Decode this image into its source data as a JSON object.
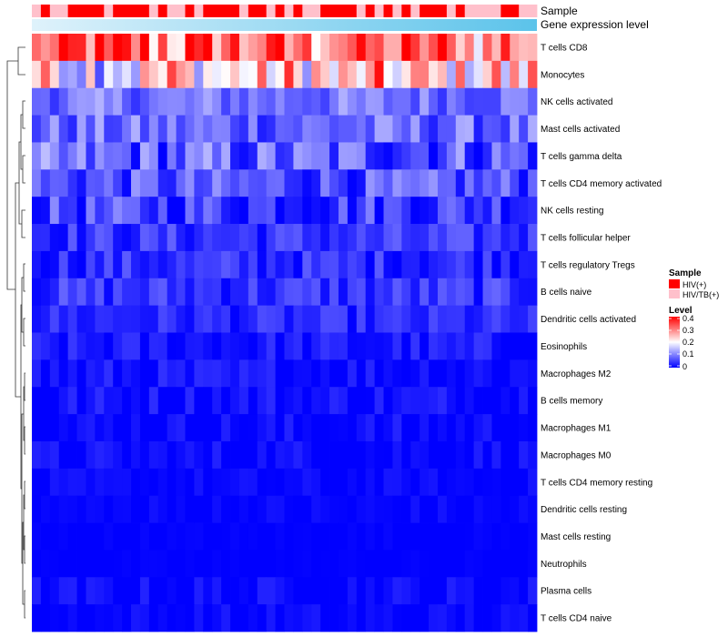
{
  "chart_data": {
    "type": "heatmap",
    "title": "",
    "annotation_rows": [
      {
        "name": "Sample",
        "label": "Sample"
      },
      {
        "name": "Gene expression level",
        "label": "Gene expression level"
      }
    ],
    "sample_groups": [
      "HIV/TB(+)",
      "HIV(+)",
      "HIV/TB(+)",
      "HIV/TB(+)",
      "HIV(+)",
      "HIV(+)",
      "HIV(+)",
      "HIV(+)",
      "HIV/TB(+)",
      "HIV(+)",
      "HIV(+)",
      "HIV(+)",
      "HIV(+)",
      "HIV/TB(+)",
      "HIV(+)",
      "HIV/TB(+)",
      "HIV/TB(+)",
      "HIV(+)",
      "HIV/TB(+)",
      "HIV(+)",
      "HIV(+)",
      "HIV(+)",
      "HIV(+)",
      "HIV/TB(+)",
      "HIV(+)",
      "HIV(+)",
      "HIV/TB(+)",
      "HIV(+)",
      "HIV/TB(+)",
      "HIV(+)",
      "HIV/TB(+)",
      "HIV/TB(+)",
      "HIV(+)",
      "HIV(+)",
      "HIV(+)",
      "HIV(+)",
      "HIV/TB(+)",
      "HIV(+)",
      "HIV/TB(+)",
      "HIV(+)",
      "HIV/TB(+)",
      "HIV(+)",
      "HIV/TB(+)",
      "HIV(+)",
      "HIV(+)",
      "HIV(+)",
      "HIV/TB(+)",
      "HIV(+)",
      "HIV/TB(+)",
      "HIV/TB(+)",
      "HIV/TB(+)",
      "HIV/TB(+)",
      "HIV(+)",
      "HIV(+)",
      "HIV/TB(+)",
      "HIV/TB(+)"
    ],
    "rows": [
      "T cells CD8",
      "Monocytes",
      "NK cells activated",
      "Mast cells activated",
      "T cells gamma delta",
      "T cells CD4 memory activated",
      "NK cells resting",
      "T cells follicular helper",
      "T cells regulatory  Tregs",
      "B cells naive",
      "Dendritic cells activated",
      "Eosinophils",
      "Macrophages M2",
      "B cells memory",
      "Macrophages M1",
      "Macrophages M0",
      "T cells CD4 memory resting",
      "Dendritic cells resting",
      "Mast cells resting",
      "Neutrophils",
      "Plasma cells",
      "T cells CD4 naive"
    ],
    "row_profiles": [
      {
        "base": 0.33,
        "spread": 0.12
      },
      {
        "base": 0.2,
        "spread": 0.14
      },
      {
        "base": 0.09,
        "spread": 0.05
      },
      {
        "base": 0.08,
        "spread": 0.06
      },
      {
        "base": 0.07,
        "spread": 0.08
      },
      {
        "base": 0.06,
        "spread": 0.06
      },
      {
        "base": 0.05,
        "spread": 0.06
      },
      {
        "base": 0.04,
        "spread": 0.04
      },
      {
        "base": 0.035,
        "spread": 0.04
      },
      {
        "base": 0.04,
        "spread": 0.04
      },
      {
        "base": 0.03,
        "spread": 0.03
      },
      {
        "base": 0.015,
        "spread": 0.03
      },
      {
        "base": 0.01,
        "spread": 0.03
      },
      {
        "base": 0.01,
        "spread": 0.03
      },
      {
        "base": 0.005,
        "spread": 0.025
      },
      {
        "base": 0.005,
        "spread": 0.025
      },
      {
        "base": 0.003,
        "spread": 0.015
      },
      {
        "base": 0.002,
        "spread": 0.015
      },
      {
        "base": 0.0,
        "spread": 0.006
      },
      {
        "base": 0.0,
        "spread": 0.004
      },
      {
        "base": 0.004,
        "spread": 0.025
      },
      {
        "base": 0.002,
        "spread": 0.02
      }
    ],
    "legend": {
      "sample_title": "Sample",
      "sample_entries": [
        {
          "label": "HIV(+)",
          "color": "#ff0000"
        },
        {
          "label": "HIV/TB(+)",
          "color": "#ffc0cb"
        }
      ],
      "level_title": "Level",
      "level_ticks": [
        "0.4",
        "0.3",
        "0.2",
        "0.1",
        "0"
      ],
      "level_range": [
        0,
        0.4
      ],
      "placement": "right"
    },
    "colors": {
      "low": "#0000ff",
      "mid": "#ffffff",
      "high": "#ff0000",
      "expression_bar": "#87ceeb"
    }
  }
}
